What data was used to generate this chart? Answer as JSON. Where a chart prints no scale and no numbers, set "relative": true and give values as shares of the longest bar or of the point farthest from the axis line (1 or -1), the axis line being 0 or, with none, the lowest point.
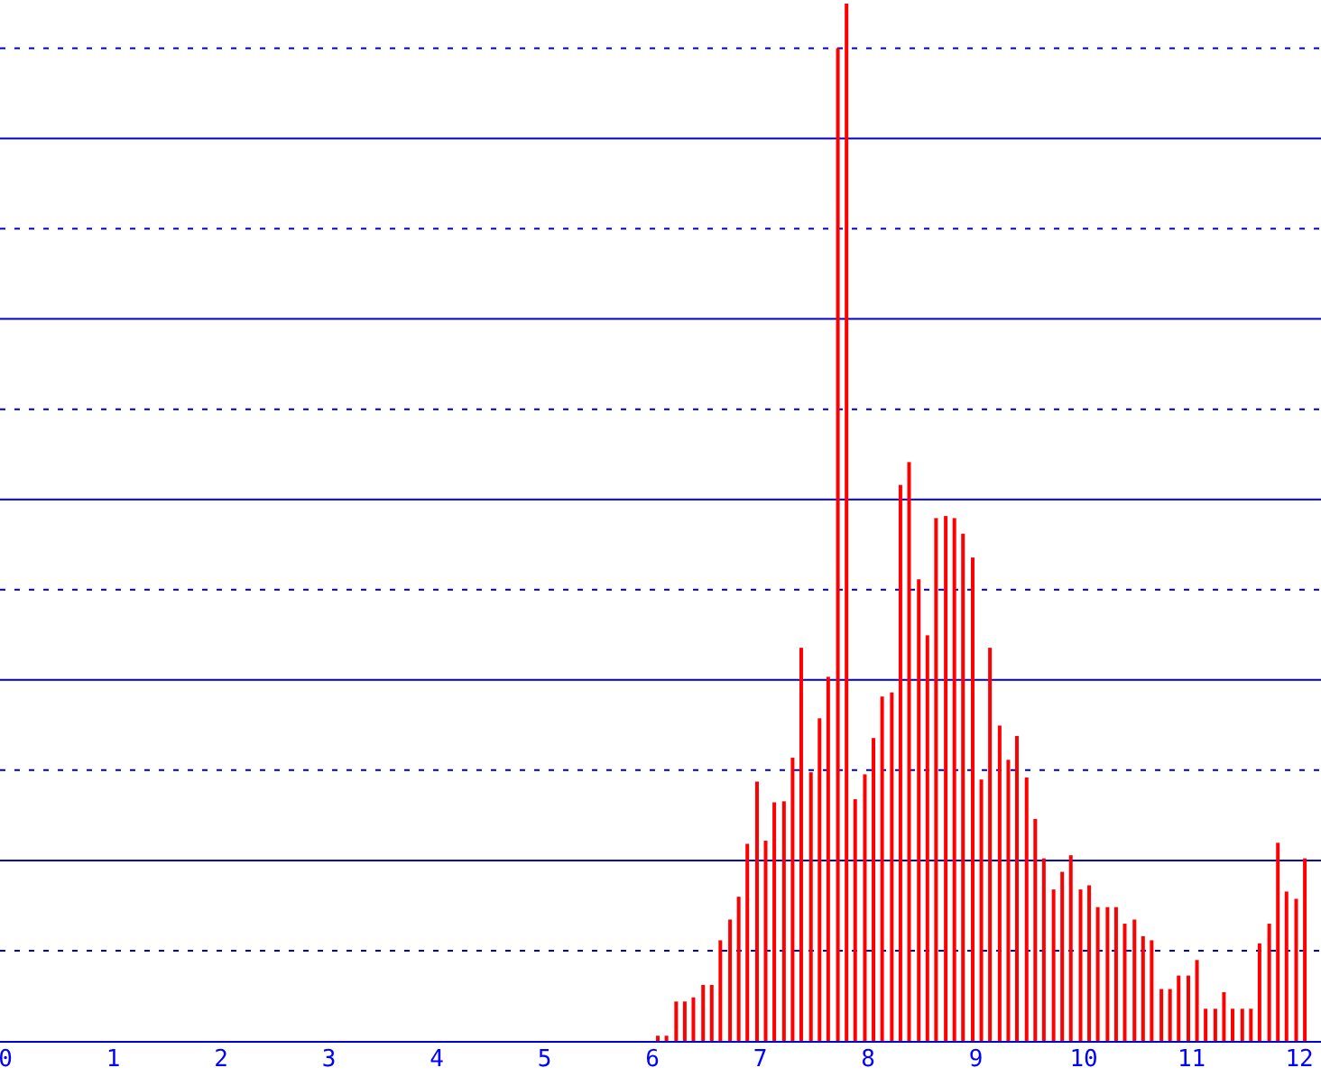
{
  "chart_data": {
    "type": "bar",
    "relative": true,
    "color": "#ff0000",
    "ref_lines": [
      {
        "axis": "y",
        "value": 0.087,
        "line_style": "dotted",
        "color": "#0000cc"
      },
      {
        "axis": "y",
        "value": 0.174,
        "line_style": "solid",
        "color": "#0000cc"
      },
      {
        "axis": "y",
        "value": 0.261,
        "line_style": "dotted",
        "color": "#0000cc"
      },
      {
        "axis": "y",
        "value": 0.348,
        "line_style": "solid",
        "color": "#0000cc"
      },
      {
        "axis": "y",
        "value": 0.435,
        "line_style": "dotted",
        "color": "#0000cc"
      },
      {
        "axis": "y",
        "value": 0.522,
        "line_style": "solid",
        "color": "#0000cc"
      },
      {
        "axis": "y",
        "value": 0.609,
        "line_style": "dotted",
        "color": "#0000cc"
      },
      {
        "axis": "y",
        "value": 0.696,
        "line_style": "solid",
        "color": "#0000cc"
      },
      {
        "axis": "y",
        "value": 0.783,
        "line_style": "dotted",
        "color": "#0000cc"
      },
      {
        "axis": "y",
        "value": 0.87,
        "line_style": "solid",
        "color": "#0000cc"
      },
      {
        "axis": "y",
        "value": 0.957,
        "line_style": "dotted",
        "color": "#0000cc"
      }
    ],
    "xlim": [
      0,
      12.2
    ],
    "xticks": [
      0,
      1,
      2,
      3,
      4,
      5,
      6,
      7,
      8,
      9,
      10,
      11,
      12
    ],
    "x": [
      6.05,
      6.13,
      6.22,
      6.3,
      6.38,
      6.47,
      6.55,
      6.63,
      6.72,
      6.8,
      6.88,
      6.97,
      7.05,
      7.13,
      7.22,
      7.3,
      7.38,
      7.47,
      7.55,
      7.63,
      7.72,
      7.8,
      7.88,
      7.97,
      8.05,
      8.13,
      8.22,
      8.3,
      8.38,
      8.47,
      8.55,
      8.63,
      8.72,
      8.8,
      8.88,
      8.97,
      9.05,
      9.13,
      9.22,
      9.3,
      9.38,
      9.47,
      9.55,
      9.63,
      9.72,
      9.8,
      9.88,
      9.97,
      10.05,
      10.13,
      10.22,
      10.3,
      10.38,
      10.47,
      10.55,
      10.63,
      10.72,
      10.8,
      10.88,
      10.97,
      11.05,
      11.13,
      11.22,
      11.3,
      11.38,
      11.47,
      11.55,
      11.63,
      11.72,
      11.8,
      11.88,
      11.97,
      12.05
    ],
    "values": [
      0.005,
      0.005,
      0.038,
      0.038,
      0.042,
      0.054,
      0.054,
      0.097,
      0.117,
      0.139,
      0.19,
      0.25,
      0.193,
      0.23,
      0.231,
      0.273,
      0.379,
      0.259,
      0.311,
      0.351,
      0.957,
      1,
      0.233,
      0.257,
      0.292,
      0.332,
      0.336,
      0.536,
      0.558,
      0.445,
      0.391,
      0.504,
      0.506,
      0.504,
      0.489,
      0.466,
      0.252,
      0.379,
      0.304,
      0.271,
      0.294,
      0.254,
      0.214,
      0.176,
      0.146,
      0.163,
      0.179,
      0.146,
      0.15,
      0.129,
      0.129,
      0.129,
      0.113,
      0.117,
      0.101,
      0.097,
      0.05,
      0.05,
      0.063,
      0.063,
      0.078,
      0.031,
      0.031,
      0.047,
      0.031,
      0.031,
      0.031,
      0.094,
      0.113,
      0.191,
      0.144,
      0.137,
      0.176
    ]
  }
}
